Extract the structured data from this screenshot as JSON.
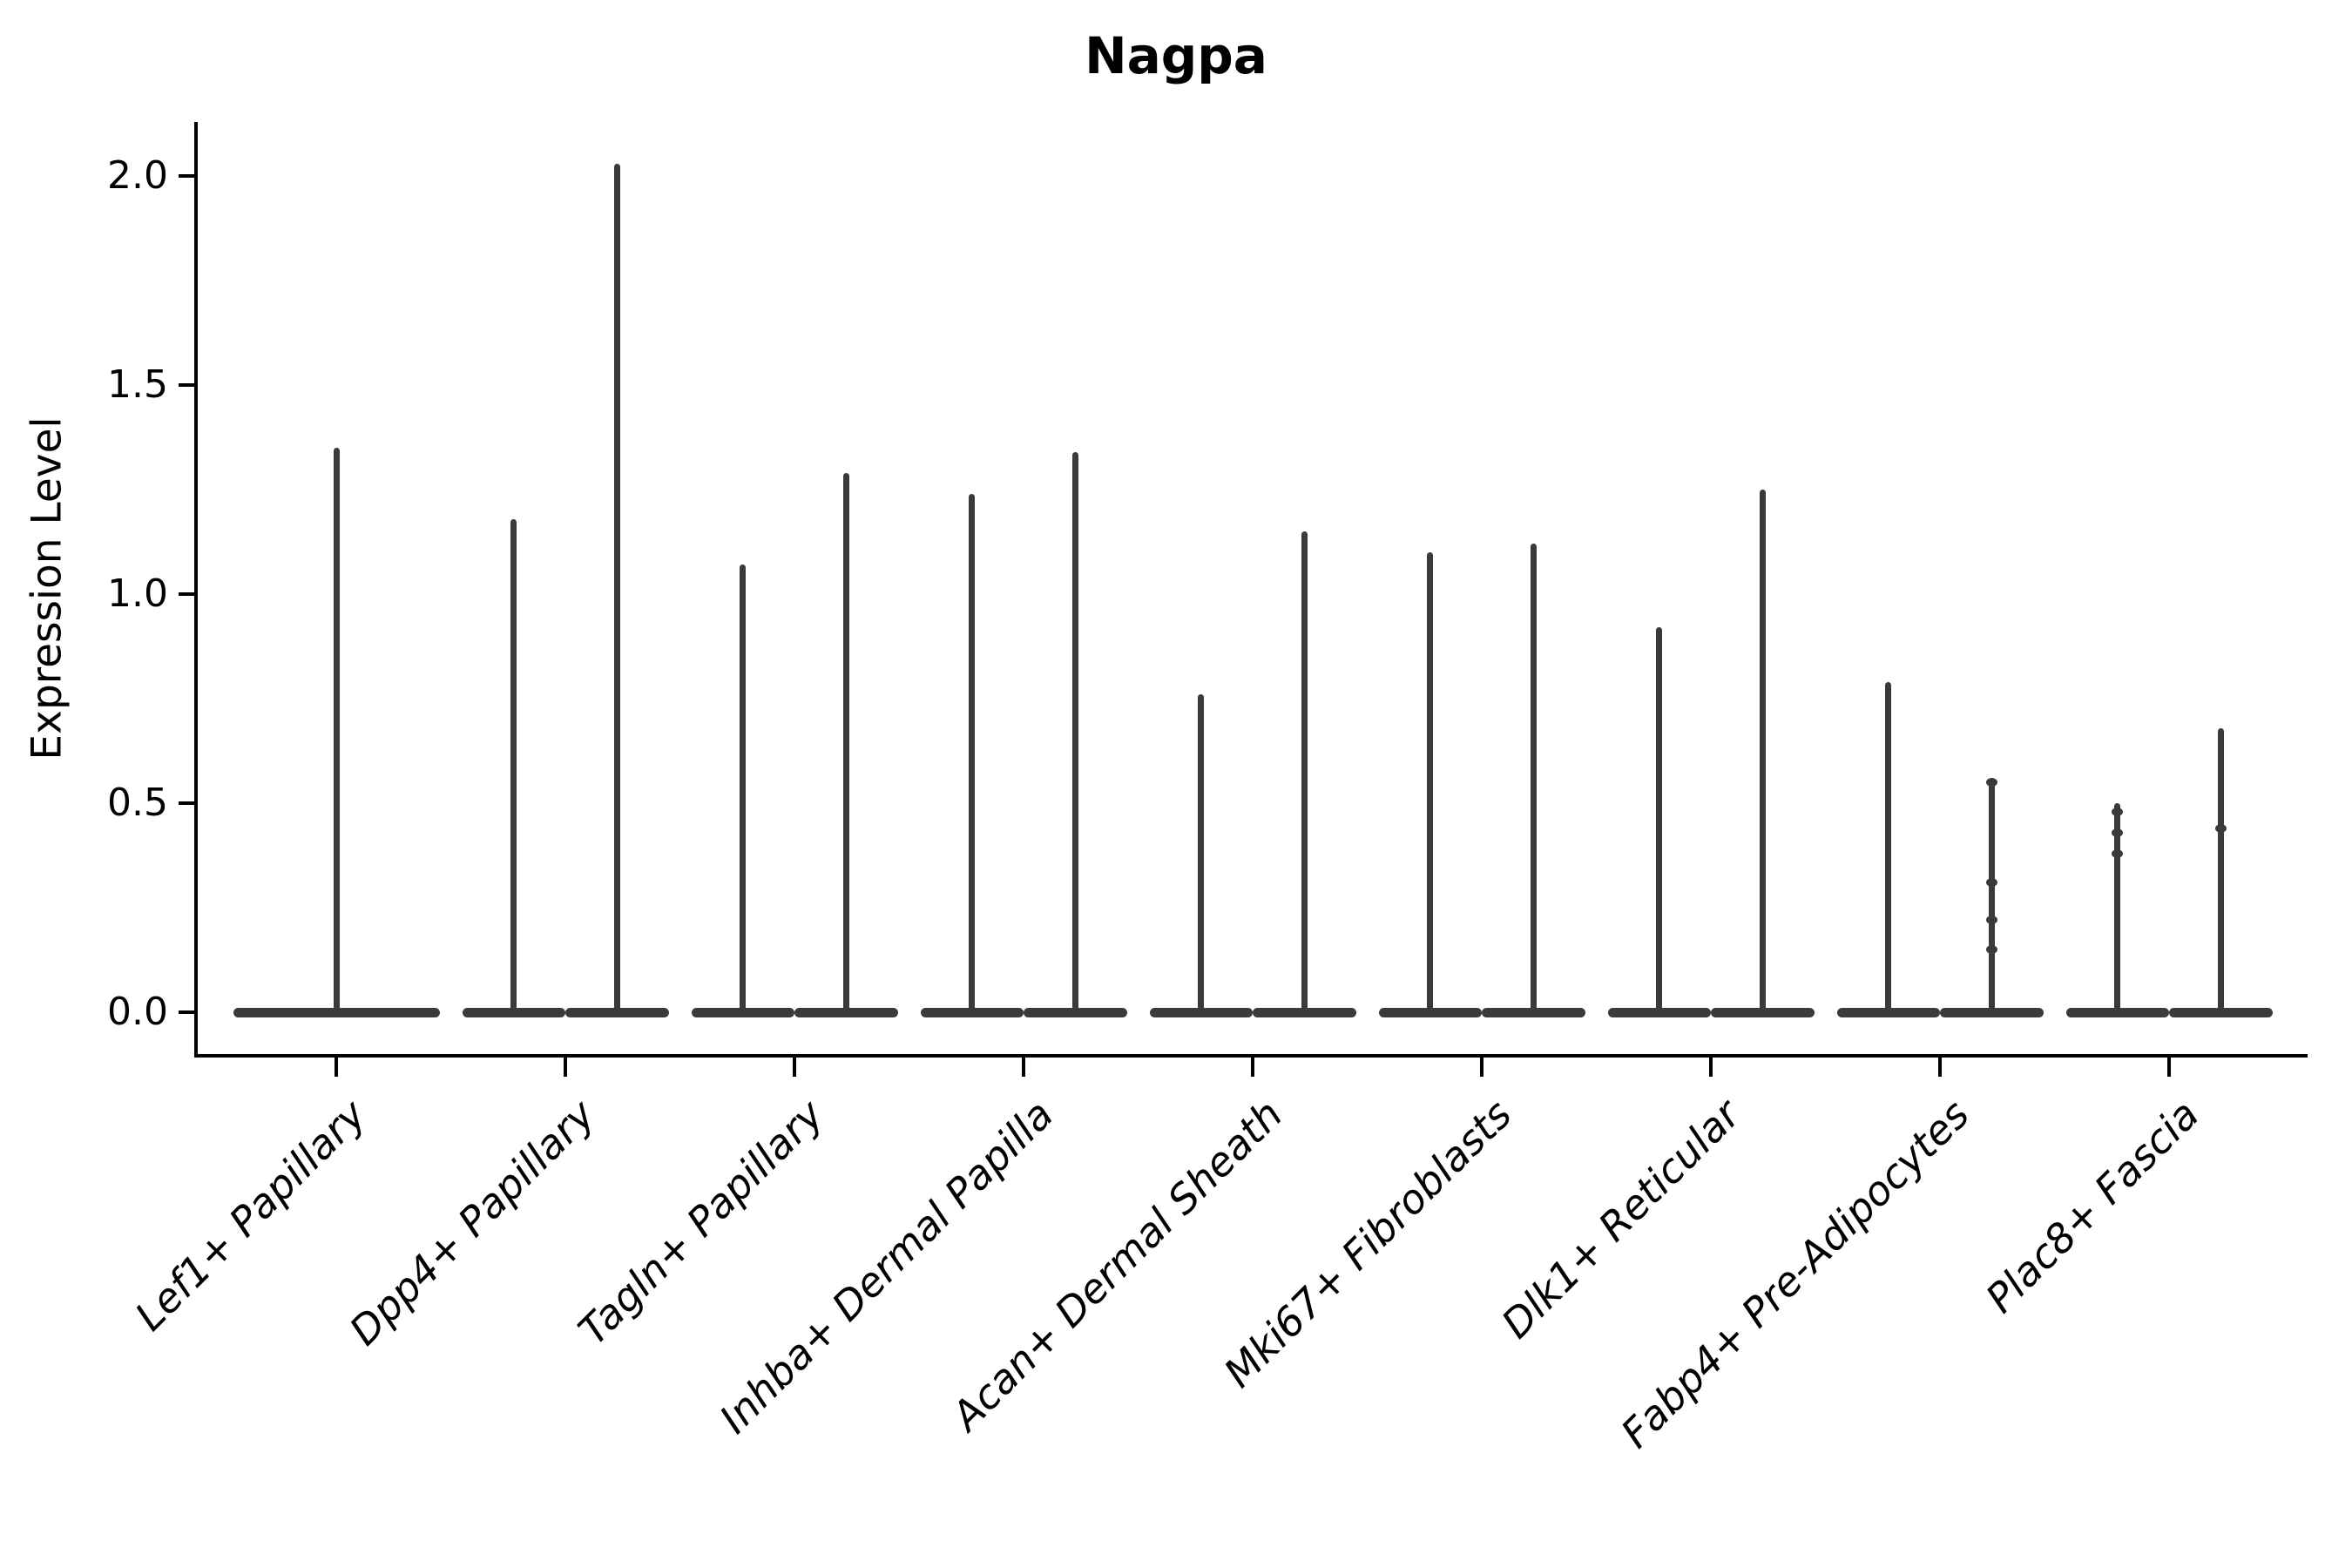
{
  "title": "Nagpa",
  "y_axis": {
    "label": "Expression Level",
    "ticks": [
      "0.0",
      "0.5",
      "1.0",
      "1.5",
      "2.0"
    ]
  },
  "colors": {
    "violin": "#3a3a3a",
    "axis": "#000000",
    "background": "#ffffff",
    "text": "#000000"
  },
  "chart_data": {
    "type": "violin",
    "title": "Nagpa",
    "xlabel": "",
    "ylabel": "Expression Level",
    "ylim": [
      -0.1,
      2.13
    ],
    "yticks": [
      0.0,
      0.5,
      1.0,
      1.5,
      2.0
    ],
    "grid": false,
    "legend": "none",
    "description": "Single-cell expression violin plot. Each cell-type category shows narrow violins: a wide flat base at expression 0 with a thin central spike rising to the maximum expression value. Categories 2-9 contain two side-by-side violins; category 1 has a single full-width violin. Small density bumps appear on some spikes.",
    "categories": [
      "Lef1+ Papillary",
      "Dpp4+ Papillary",
      "Tagln+ Papillary",
      "Inhba+ Dermal Papilla",
      "Acan+ Dermal Sheath",
      "Mki67+ Fibroblasts",
      "Dlk1+ Reticular",
      "Fabp4+ Pre-Adipocytes",
      "Plac8+ Fascia"
    ],
    "violins": [
      {
        "category": "Lef1+ Papillary",
        "maxima": [
          1.35
        ],
        "dots": [
          []
        ]
      },
      {
        "category": "Dpp4+ Papillary",
        "maxima": [
          1.18,
          2.03
        ],
        "dots": [
          [],
          []
        ]
      },
      {
        "category": "Tagln+ Papillary",
        "maxima": [
          1.07,
          1.29
        ],
        "dots": [
          [],
          []
        ]
      },
      {
        "category": "Inhba+ Dermal Papilla",
        "maxima": [
          1.24,
          1.34
        ],
        "dots": [
          [],
          []
        ]
      },
      {
        "category": "Acan+ Dermal Sheath",
        "maxima": [
          0.76,
          1.15
        ],
        "dots": [
          [],
          []
        ]
      },
      {
        "category": "Mki67+ Fibroblasts",
        "maxima": [
          1.1,
          1.12
        ],
        "dots": [
          [],
          []
        ]
      },
      {
        "category": "Dlk1+ Reticular",
        "maxima": [
          0.92,
          1.25
        ],
        "dots": [
          [],
          []
        ]
      },
      {
        "category": "Fabp4+ Pre-Adipocytes",
        "maxima": [
          0.79,
          0.56
        ],
        "dots": [
          [],
          [
            0.55,
            0.31,
            0.22,
            0.15
          ]
        ]
      },
      {
        "category": "Plac8+ Fascia",
        "maxima": [
          0.5,
          0.68
        ],
        "dots": [
          [
            0.48,
            0.43,
            0.38
          ],
          [
            0.44
          ]
        ]
      }
    ]
  }
}
